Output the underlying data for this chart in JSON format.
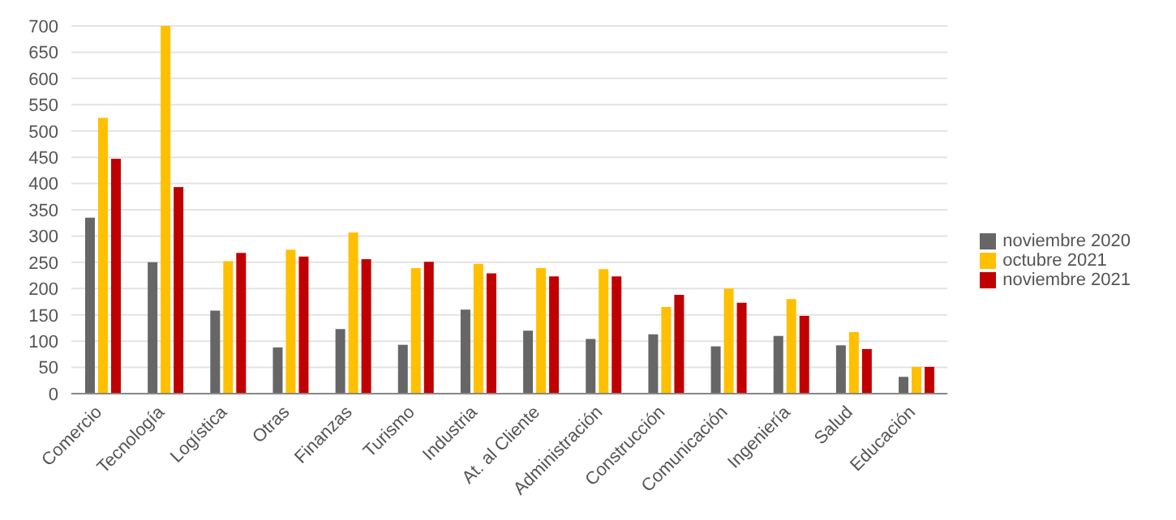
{
  "chart_data": {
    "type": "bar",
    "categories": [
      "Comercio",
      "Tecnología",
      "Logística",
      "Otras",
      "Finanzas",
      "Turismo",
      "Industria",
      "At. al Cliente",
      "Administración",
      "Construcción",
      "Comunicación",
      "Ingeniería",
      "Salud",
      "Educación"
    ],
    "series": [
      {
        "name": "noviembre 2020",
        "color": "#666666",
        "values": [
          335,
          250,
          158,
          88,
          123,
          93,
          160,
          120,
          104,
          113,
          90,
          110,
          92,
          32
        ]
      },
      {
        "name": "octubre 2021",
        "color": "#ffc000",
        "values": [
          525,
          700,
          252,
          274,
          307,
          239,
          247,
          239,
          237,
          165,
          200,
          180,
          117,
          51
        ]
      },
      {
        "name": "noviembre 2021",
        "color": "#c00000",
        "values": [
          447,
          393,
          268,
          261,
          256,
          251,
          229,
          223,
          223,
          188,
          173,
          148,
          85,
          51
        ]
      }
    ],
    "ylim": [
      0,
      700
    ],
    "yticks": [
      0,
      50,
      100,
      150,
      200,
      250,
      300,
      350,
      400,
      450,
      500,
      550,
      600,
      650,
      700
    ],
    "grid": "y",
    "legend": "right"
  }
}
